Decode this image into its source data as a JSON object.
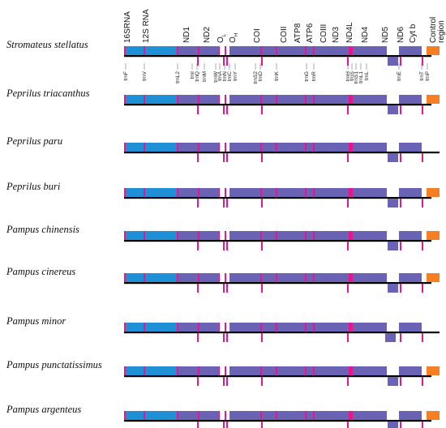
{
  "colors": {
    "rrna": "#1f8fd6",
    "protein": "#6a62b5",
    "trna": "#e6168f",
    "control": "#f57f22",
    "line": "#000000"
  },
  "gene_labels": [
    "16SRNA",
    "12S RNA",
    "ND1",
    "ND2",
    "COI",
    "COII",
    "ATP8",
    "ATP6",
    "COIII",
    "ND3",
    "ND4L",
    "ND4",
    "ND5",
    "ND6",
    "Cyt b"
  ],
  "origin_labels": [
    {
      "main": "O",
      "sub": "L"
    },
    {
      "main": "O",
      "sub": "H"
    }
  ],
  "control_label": {
    "line1": "Control",
    "line2": "region"
  },
  "trna_labels": [
    "trnF",
    "trnV",
    "trnL2",
    "trnI",
    "trnQ",
    "trnM",
    "trnW",
    "trnA",
    "trnN",
    "trnC",
    "trnY",
    "trnS2",
    "trnD",
    "trnK",
    "trnG",
    "trnR",
    "trnH",
    "trnS",
    "trnS1",
    "trnL1",
    "trnL",
    "trnE",
    "trnT",
    "trnP"
  ],
  "species": [
    {
      "name": "Stromateus stellatus",
      "control": true,
      "full_line": false,
      "nd6_shift": 0
    },
    {
      "name": "Peprilus triacanthus",
      "control": true,
      "full_line": false,
      "nd6_shift": 0
    },
    {
      "name": "Peprilus paru",
      "control": false,
      "full_line": true,
      "nd6_shift": 0
    },
    {
      "name": "Peprilus buri",
      "control": true,
      "full_line": false,
      "nd6_shift": 0
    },
    {
      "name": "Pampus chinensis",
      "control": true,
      "full_line": false,
      "nd6_shift": 0
    },
    {
      "name": "Pampus cinereus",
      "control": true,
      "full_line": false,
      "nd6_shift": 0
    },
    {
      "name": "Pampus minor",
      "control": false,
      "full_line": true,
      "nd6_shift": -3
    },
    {
      "name": "Pampus punctatissimus",
      "control": true,
      "full_line": false,
      "nd6_shift": 0
    },
    {
      "name": "Pampus argenteus",
      "control": true,
      "full_line": false,
      "nd6_shift": 0
    }
  ]
}
